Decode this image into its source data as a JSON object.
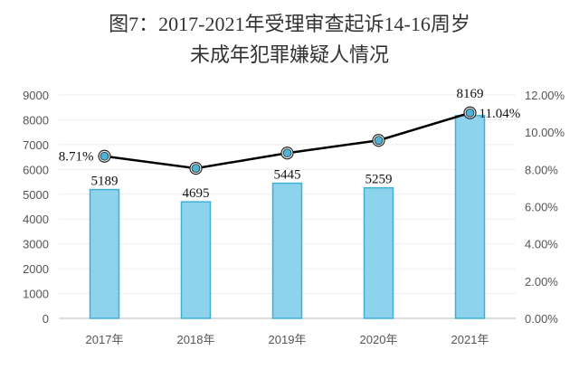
{
  "chart_data": {
    "type": "bar+line",
    "title": "图7：2017-2021年受理审查起诉14-16周岁",
    "subtitle": "未成年犯罪嫌疑人情况",
    "categories": [
      "2017年",
      "2018年",
      "2019年",
      "2020年",
      "2021年"
    ],
    "series": [
      {
        "type": "bar",
        "values": [
          5189,
          4695,
          5445,
          5259,
          8169
        ],
        "labels": [
          "5189",
          "4695",
          "5445",
          "5259",
          "8169"
        ],
        "color": "#8ed3ec",
        "axis": "left"
      },
      {
        "type": "line",
        "values": [
          8.71,
          8.06,
          8.88,
          9.56,
          11.04
        ],
        "labels": [
          "8.71%",
          "",
          "",
          "",
          "11.04%"
        ],
        "color": "#000000",
        "marker_color": "#4fb3d6",
        "axis": "right"
      }
    ],
    "ylim": [
      0,
      9000
    ],
    "yticks": [
      "0",
      "1000",
      "2000",
      "3000",
      "4000",
      "5000",
      "6000",
      "7000",
      "8000",
      "9000"
    ],
    "y2lim": [
      0,
      12
    ],
    "y2ticks": [
      "0.00%",
      "2.00%",
      "4.00%",
      "6.00%",
      "8.00%",
      "10.00%",
      "12.00%"
    ],
    "grid": true
  }
}
